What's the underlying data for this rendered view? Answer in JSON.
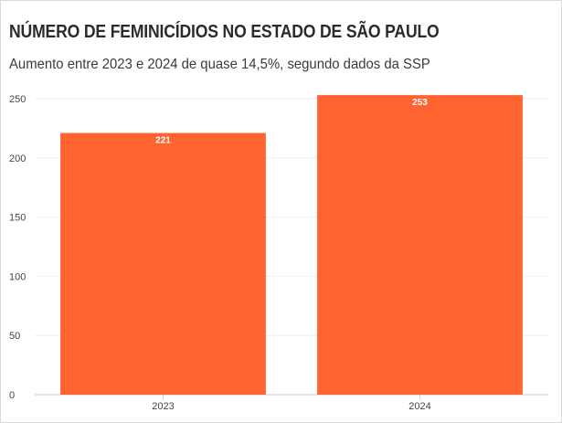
{
  "header": {
    "title": "NÚMERO DE FEMINICÍDIOS NO ESTADO DE SÃO PAULO",
    "subtitle": "Aumento entre 2023 e 2024 de quase 14,5%, segundo dados da SSP"
  },
  "colors": {
    "bar": "#ff6430",
    "grid": "#eeeeee",
    "axis": "#cccccc",
    "text": "#2b2b2b"
  },
  "chart_data": {
    "type": "bar",
    "title": "NÚMERO DE FEMINICÍDIOS NO ESTADO DE SÃO PAULO",
    "subtitle": "Aumento entre 2023 e 2024 de quase 14,5%, segundo dados da SSP",
    "categories": [
      "2023",
      "2024"
    ],
    "values": [
      221,
      253
    ],
    "data_labels": [
      "221",
      "253"
    ],
    "xlabel": "",
    "ylabel": "",
    "ylim": [
      0,
      250
    ],
    "yticks": [
      0,
      50,
      100,
      150,
      200,
      250
    ],
    "grid": true,
    "legend": "none"
  }
}
